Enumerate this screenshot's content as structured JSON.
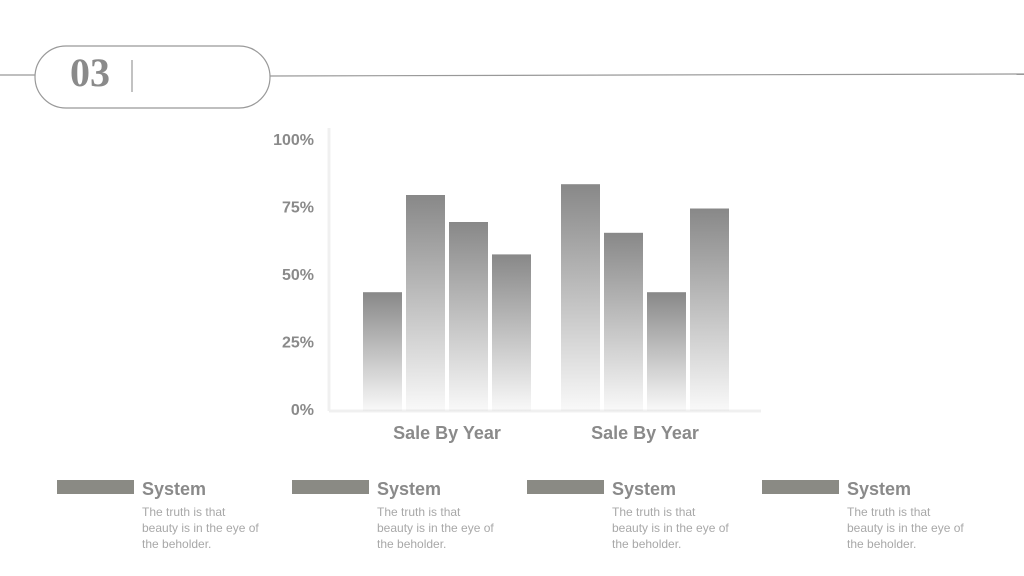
{
  "header": {
    "number": "03"
  },
  "chart_data": {
    "type": "bar",
    "categories": [
      "Sale By Year",
      "Sale By Year"
    ],
    "series": [
      {
        "color": "#888888",
        "values": [
          44,
          84
        ]
      },
      {
        "color": "#888888",
        "values": [
          80,
          66
        ]
      },
      {
        "color": "#888888",
        "values": [
          70,
          44
        ]
      },
      {
        "color": "#888888",
        "values": [
          58,
          75
        ]
      }
    ],
    "ylim": [
      0,
      100
    ],
    "yticks": [
      {
        "value": 0,
        "label": "0%"
      },
      {
        "value": 25,
        "label": "25%"
      },
      {
        "value": 50,
        "label": "50%"
      },
      {
        "value": 75,
        "label": "75%"
      },
      {
        "value": 100,
        "label": "100%"
      }
    ],
    "grid": false
  },
  "cards": [
    {
      "title": "System",
      "text": "The truth is that beauty is in the eye of the beholder."
    },
    {
      "title": "System",
      "text": "The truth is that beauty is in the eye of the beholder."
    },
    {
      "title": "System",
      "text": "The truth is that beauty is in the eye of the beholder."
    },
    {
      "title": "System",
      "text": "The truth is that beauty is in the eye of the beholder."
    }
  ]
}
